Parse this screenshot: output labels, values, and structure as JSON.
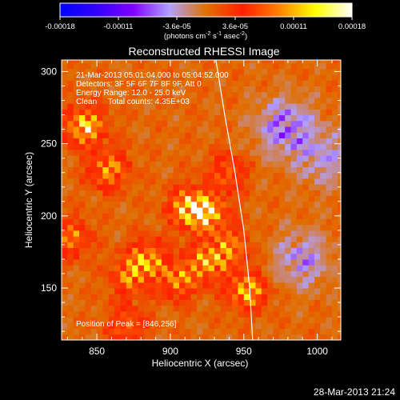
{
  "colorbar": {
    "tick_labels": [
      "-0.00018",
      "-0.00011",
      "-3.6e-05",
      "3.6e-05",
      "0.00011",
      "0.00018"
    ],
    "unit_label": "(photons cm",
    "unit_sup1": "-2",
    "unit_mid1": " s",
    "unit_sup2": "-1",
    "unit_mid2": " asec",
    "unit_sup3": "-2",
    "unit_end": ")"
  },
  "info": {
    "time_range": "21-Mar-2013 05:01:04.000 to 05:04:52.000",
    "detectors": "Detectors: 3F 5F 6F 7F 8F 9F, Att 0",
    "energy": "Energy Range: 12.0 - 25.0 keV",
    "clean": "Clean     Total counts: 4.35E+03",
    "peak": "Position of Peak = [846,256]"
  },
  "footer": {
    "timestamp": "28-Mar-2013 21:24"
  },
  "chart_data": {
    "type": "heatmap",
    "title": "Reconstructed RHESSI Image",
    "xlabel": "Heliocentric X (arcsec)",
    "ylabel": "Heliocentric Y (arcsec)",
    "xlim": [
      826,
      1016
    ],
    "ylim": [
      114,
      308
    ],
    "x_ticks": [
      850,
      900,
      950,
      1000
    ],
    "y_ticks": [
      150,
      200,
      250,
      300
    ],
    "colorbar_range": [
      -0.00018,
      0.00018
    ],
    "colormap": [
      "#0000ff",
      "#3300ff",
      "#8000ff",
      "#b0a0ff",
      "#e07000",
      "#ff2000",
      "#ff8000",
      "#ffff00",
      "#ffffff"
    ],
    "limb_curve": {
      "x": [
        931,
        937,
        944,
        950,
        954,
        956
      ],
      "y": [
        308,
        270,
        230,
        190,
        150,
        114
      ]
    },
    "peak": {
      "x": 846,
      "y": 256
    },
    "hot_regions": [
      {
        "x": 842,
        "y": 262,
        "intensity": 0.00016
      },
      {
        "x": 858,
        "y": 232,
        "intensity": 0.00012
      },
      {
        "x": 832,
        "y": 185,
        "intensity": 0.0001
      },
      {
        "x": 912,
        "y": 206,
        "intensity": 0.00015
      },
      {
        "x": 926,
        "y": 202,
        "intensity": 0.00014
      },
      {
        "x": 884,
        "y": 170,
        "intensity": 0.00012
      },
      {
        "x": 872,
        "y": 158,
        "intensity": 0.0001
      },
      {
        "x": 905,
        "y": 156,
        "intensity": 0.00011
      },
      {
        "x": 925,
        "y": 168,
        "intensity": 0.00012
      },
      {
        "x": 940,
        "y": 178,
        "intensity": 0.0001
      },
      {
        "x": 952,
        "y": 148,
        "intensity": 0.00014
      },
      {
        "x": 938,
        "y": 230,
        "intensity": 8e-05
      },
      {
        "x": 870,
        "y": 125,
        "intensity": 8e-05
      }
    ],
    "cold_regions": [
      {
        "x": 978,
        "y": 262,
        "intensity": -9e-05
      },
      {
        "x": 1005,
        "y": 240,
        "intensity": -6e-05
      },
      {
        "x": 990,
        "y": 170,
        "intensity": -7e-05
      }
    ]
  }
}
